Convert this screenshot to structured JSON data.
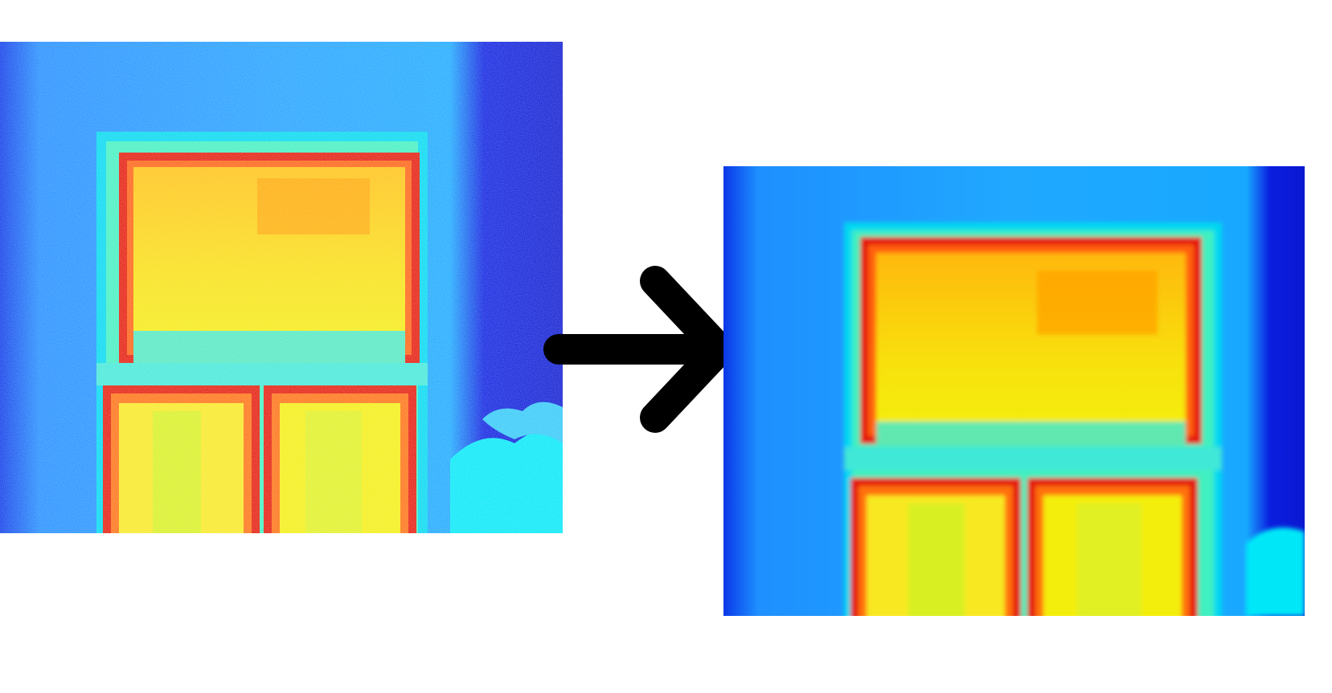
{
  "figure": {
    "description_kind": "before-after thermal image comparison",
    "panels": [
      {
        "id": "before",
        "icon": "thermal-image-noisy"
      },
      {
        "id": "after",
        "icon": "thermal-image-denoised"
      }
    ],
    "connector": {
      "icon": "arrow-right-icon",
      "color": "#000000"
    },
    "palette": {
      "background": "#ffffff",
      "cold_dark": "#0a1ee0",
      "cold": "#1e90ff",
      "cool": "#00d8f0",
      "mid": "#40f0c0",
      "warm": "#f4ee10",
      "hot": "#ffb000",
      "hottest": "#e41808"
    }
  }
}
